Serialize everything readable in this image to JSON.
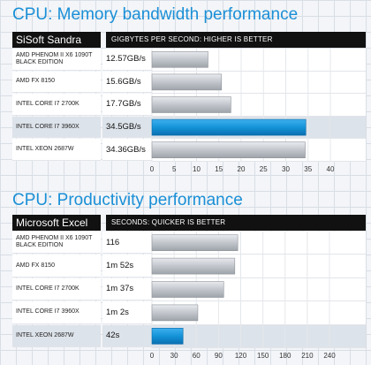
{
  "chart_data": [
    {
      "type": "bar",
      "title": "CPU: Memory bandwidth performance",
      "brand": "SiSoft Sandra",
      "xlabel": "GIGBYTES PER SECOND: HIGHER IS BETTER",
      "categories": [
        "AMD PHENOM II X6 1090T BLACK EDITION",
        "AMD FX 8150",
        "INTEL CORE I7 2700K",
        "INTEL CORE I7 3960X",
        "INTEL XEON 2687W"
      ],
      "values": [
        12.57,
        15.6,
        17.7,
        34.5,
        34.36
      ],
      "value_labels": [
        "12.57GB/s",
        "15.6GB/s",
        "17.7GB/s",
        "34.5GB/s",
        "34.36GB/s"
      ],
      "highlight_index": 3,
      "ticks": [
        "0",
        "5",
        "10",
        "15",
        "20",
        "25",
        "30",
        "35",
        "40"
      ],
      "xlim": [
        0,
        40
      ]
    },
    {
      "type": "bar",
      "title": "CPU: Productivity performance",
      "brand": "Microsoft Excel",
      "xlabel": "SECONDS: QUICKER IS BETTER",
      "categories": [
        "AMD PHENOM II X6 1090T BLACK EDITION",
        "AMD FX 8150",
        "INTEL CORE I7 2700K",
        "INTEL CORE I7 3960X",
        "INTEL XEON 2687W"
      ],
      "values": [
        116,
        112,
        97,
        62,
        42
      ],
      "value_labels": [
        "116",
        "1m 52s",
        "1m 37s",
        "1m 2s",
        "42s"
      ],
      "highlight_index": 4,
      "ticks": [
        "0",
        "30",
        "60",
        "90",
        "120",
        "150",
        "180",
        "210",
        "240"
      ],
      "xlim": [
        0,
        240
      ]
    }
  ],
  "colors": {
    "accent": "#1a8fd6",
    "bar_gray": "#c4c8ce",
    "highlight_bar": "#1493d8"
  }
}
